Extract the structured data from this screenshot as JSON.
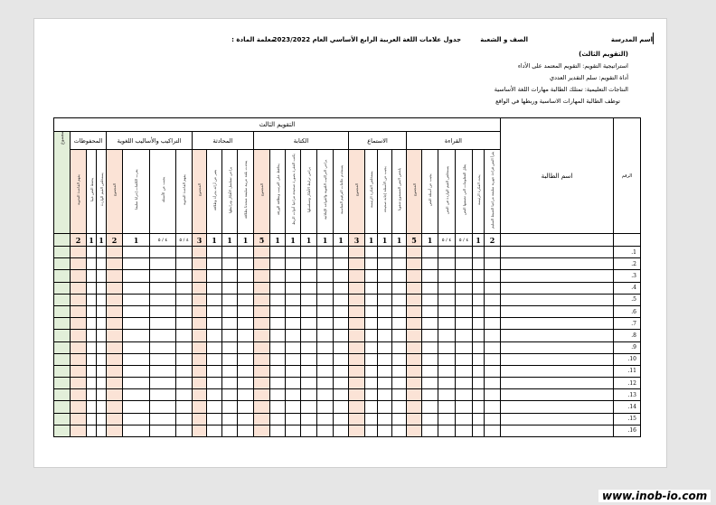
{
  "header": {
    "school_name_label": "اسم المدرسة",
    "class_label": "الصف و الشعبة",
    "title": "جدول علامات اللغة العربية الرابع الأساسي العام 2023/2022",
    "teacher_label": "معلمة المادة :"
  },
  "info": {
    "evaluation": "(التقويم الثالث)",
    "strategy": "استراتيجية التقويم: التقويم المعتمد على الأداء",
    "tool": "أداة التقويم: سلم التقدير العددي",
    "outcomes": "النتاجات التعليمية: تمتلك الطالبة مهارات اللغة الأساسية",
    "outcome2": "توظف الطالبة  المهارات الاساسية وربطها في الواقع"
  },
  "table": {
    "title": "التقويم الثالث",
    "name_header": "اسم الطالبة",
    "number_header": "الرقم",
    "total_header": "المجموع",
    "groups": [
      {
        "label": "المحفوظات",
        "span": 3
      },
      {
        "label": "التراكيب والأساليب اللغوية",
        "span": 4
      },
      {
        "label": "المحادثة",
        "span": 4
      },
      {
        "label": "الكتابة",
        "span": 6
      },
      {
        "label": "الاستماع",
        "span": 4
      },
      {
        "label": "القراءة",
        "span": 6
      }
    ],
    "columns": [
      {
        "label": "يفهم القاعدة النحوية",
        "score": "2",
        "sum": true
      },
      {
        "label": "يحفظ النص غيبا",
        "score": "1"
      },
      {
        "label": "يستخلص القيم الواردة",
        "score": "1"
      },
      {
        "label": "المجموع",
        "score": "2",
        "sum": true
      },
      {
        "label": "يعرب الكلمات إعرابا سليما",
        "score": "1"
      },
      {
        "label": "يجيب عن الأسئلة",
        "score": "٤ / ٥"
      },
      {
        "label": "يفهم القاعدة النحوية",
        "score": "٤ / ٥"
      },
      {
        "label": "المجموع",
        "score": "3",
        "sum": true
      },
      {
        "label": "يعبر عن آرائه بجرأة وطلاقة",
        "score": "1"
      },
      {
        "label": "يراعي تسلسل الأفكار وترابطها",
        "score": "1"
      },
      {
        "label": "يتحدث بلغة عربية سليمة متحدثا بطلاقة",
        "score": "1"
      },
      {
        "label": "المجموع",
        "score": "5",
        "sum": true
      },
      {
        "label": "يحافظ على الترتيب ونظافة الورقة",
        "score": "1"
      },
      {
        "label": "يكتب الفقرة بصورة صحيحة مراعيا أدوات الربط",
        "score": "1"
      },
      {
        "label": "يراعي ترابط الأفكار وتسلسلها",
        "score": "1"
      },
      {
        "label": "يراعي التراكيب اللغوية والقواعد الإملائية",
        "score": "1"
      },
      {
        "label": "يستخدم علامات الترقيم المناسبة",
        "score": "1"
      },
      {
        "label": "المجموع",
        "score": "3",
        "sum": true
      },
      {
        "label": "يستخلص الفكرة الرئيسة",
        "score": "1"
      },
      {
        "label": "يجيب عن الأسئلة إجابة صحيحة",
        "score": "1"
      },
      {
        "label": "يلخص النص المسموع شفويا",
        "score": "1"
      },
      {
        "label": "المجموع",
        "score": "5",
        "sum": true
      },
      {
        "label": "يجيب عن أسئلة النص",
        "score": "1"
      },
      {
        "label": "يستخلص القيم الواردة في النص",
        "score": "٤ / ٥"
      },
      {
        "label": "يعلل المعلومات التي تضمنها النص",
        "score": "٤ / ٥"
      },
      {
        "label": "يحدد الفكرة الرئيسة",
        "score": "1"
      },
      {
        "label": "يقرأ النص قراءة جهرية سليمة مراعيا الضبط السليم",
        "score": "2"
      }
    ],
    "rows": [
      ".1",
      ".2",
      ".3",
      ".4",
      ".5",
      ".6",
      ".7",
      ".8",
      ".9",
      ".10",
      ".11",
      ".12",
      ".13",
      ".14",
      ".15",
      ".16"
    ]
  },
  "watermark": "www.inob-io.com"
}
